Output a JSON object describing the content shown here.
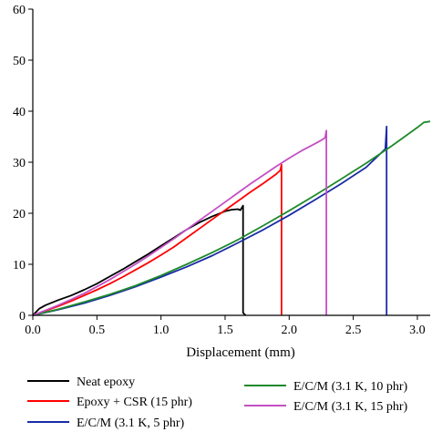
{
  "chart_data": {
    "type": "line",
    "title": "",
    "xlabel": "Displacement (mm)",
    "ylabel": "",
    "xlim": [
      0,
      3.1
    ],
    "ylim": [
      0,
      60
    ],
    "x_ticks": [
      0.0,
      0.5,
      1.0,
      1.5,
      2.0,
      2.5,
      3.0
    ],
    "x_tick_labels": [
      "0.0",
      "0.5",
      "1.0",
      "1.5",
      "2.0",
      "2.5",
      "3.0"
    ],
    "y_ticks": [
      0,
      10,
      20,
      30,
      40,
      50,
      60
    ],
    "y_tick_labels": [
      "0",
      "10",
      "20",
      "30",
      "40",
      "50",
      "60"
    ],
    "grid": false,
    "legend_position": "bottom",
    "series": [
      {
        "name": "Neat epoxy",
        "color": "#000000",
        "x": [
          0,
          0.05,
          0.1,
          0.2,
          0.3,
          0.4,
          0.5,
          0.6,
          0.7,
          0.8,
          0.9,
          1.0,
          1.1,
          1.2,
          1.3,
          1.4,
          1.5,
          1.55,
          1.6,
          1.62,
          1.64,
          1.64,
          1.66
        ],
        "y": [
          0,
          1.3,
          2.0,
          3.0,
          3.9,
          5.0,
          6.2,
          7.6,
          9.0,
          10.5,
          12.0,
          13.6,
          15.2,
          16.8,
          18.2,
          19.4,
          20.4,
          20.7,
          20.8,
          20.6,
          21.5,
          0.5,
          0
        ]
      },
      {
        "name": "Epoxy + CSR (15 phr)",
        "color": "#ff0000",
        "x": [
          0,
          0.1,
          0.2,
          0.3,
          0.4,
          0.5,
          0.6,
          0.7,
          0.8,
          0.9,
          1.0,
          1.1,
          1.2,
          1.3,
          1.4,
          1.5,
          1.6,
          1.7,
          1.8,
          1.9,
          1.93,
          1.94,
          1.94
        ],
        "y": [
          0,
          0.9,
          1.8,
          2.8,
          3.9,
          5.0,
          6.2,
          7.5,
          8.9,
          10.3,
          11.8,
          13.4,
          15.2,
          17.0,
          18.8,
          20.6,
          22.4,
          24.2,
          25.9,
          27.7,
          28.4,
          29.5,
          0
        ]
      },
      {
        "name": "E/C/M (3.1 K, 5 phr)",
        "color": "#1a2ba6",
        "x": [
          0,
          0.2,
          0.4,
          0.6,
          0.8,
          1.0,
          1.2,
          1.4,
          1.6,
          1.8,
          2.0,
          2.2,
          2.4,
          2.6,
          2.75,
          2.76,
          2.76
        ],
        "y": [
          0,
          1.1,
          2.4,
          3.9,
          5.6,
          7.5,
          9.5,
          11.7,
          14.2,
          16.8,
          19.6,
          22.6,
          25.7,
          29.0,
          32.6,
          37.0,
          0
        ]
      },
      {
        "name": "E/C/M (3.1 K, 10 phr)",
        "color": "#1e8a2a",
        "x": [
          0,
          0.2,
          0.4,
          0.6,
          0.8,
          1.0,
          1.2,
          1.4,
          1.6,
          1.8,
          2.0,
          2.2,
          2.4,
          2.6,
          2.8,
          2.9,
          3.0,
          3.05,
          3.1
        ],
        "y": [
          0,
          1.2,
          2.6,
          4.1,
          5.8,
          7.8,
          10.0,
          12.3,
          14.8,
          17.6,
          20.5,
          23.5,
          26.6,
          29.8,
          33.2,
          35.0,
          36.8,
          37.8,
          38.0
        ]
      },
      {
        "name": "E/C/M (3.1 K, 15 phr)",
        "color": "#c44fc4",
        "x": [
          0,
          0.1,
          0.2,
          0.3,
          0.4,
          0.5,
          0.6,
          0.7,
          0.8,
          0.9,
          1.0,
          1.1,
          1.2,
          1.3,
          1.4,
          1.5,
          1.6,
          1.7,
          1.8,
          1.9,
          2.0,
          2.1,
          2.2,
          2.25,
          2.28,
          2.29,
          2.29
        ],
        "y": [
          0,
          1.0,
          2.0,
          3.1,
          4.3,
          5.6,
          7.0,
          8.5,
          10.0,
          11.6,
          13.3,
          15.0,
          16.8,
          18.6,
          20.4,
          22.2,
          24.0,
          25.8,
          27.5,
          29.2,
          30.8,
          32.3,
          33.6,
          34.3,
          34.8,
          36.2,
          0
        ]
      }
    ]
  }
}
